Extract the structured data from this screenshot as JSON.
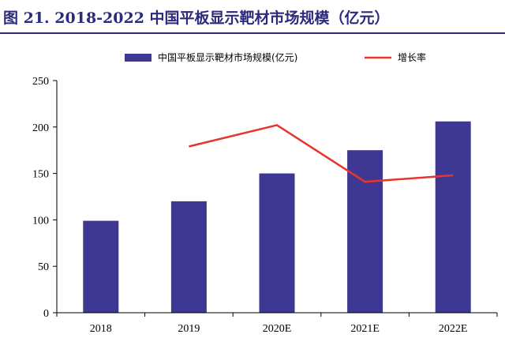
{
  "figure": {
    "title": "图 21. 2018-2022 中国平板显示靶材市场规模（亿元）"
  },
  "colors": {
    "bar": "#3f3893",
    "line": "#e8332e",
    "axis": "#000000",
    "title": "#2c2a7a"
  },
  "chart_data": {
    "type": "bar",
    "categories": [
      "2018",
      "2019",
      "2020E",
      "2021E",
      "2022E"
    ],
    "ylim": [
      0,
      250
    ],
    "yticks": [
      "0",
      "50",
      "100",
      "150",
      "200",
      "250"
    ],
    "grid": false,
    "legend_position": "top",
    "series": [
      {
        "name": "中国平板显示靶材市场规模(亿元)",
        "kind": "bar",
        "values": [
          99,
          120,
          150,
          175,
          206
        ]
      },
      {
        "name": "增长率",
        "kind": "line",
        "values": [
          null,
          179,
          202,
          141,
          148
        ],
        "note_unitless": true
      }
    ]
  }
}
